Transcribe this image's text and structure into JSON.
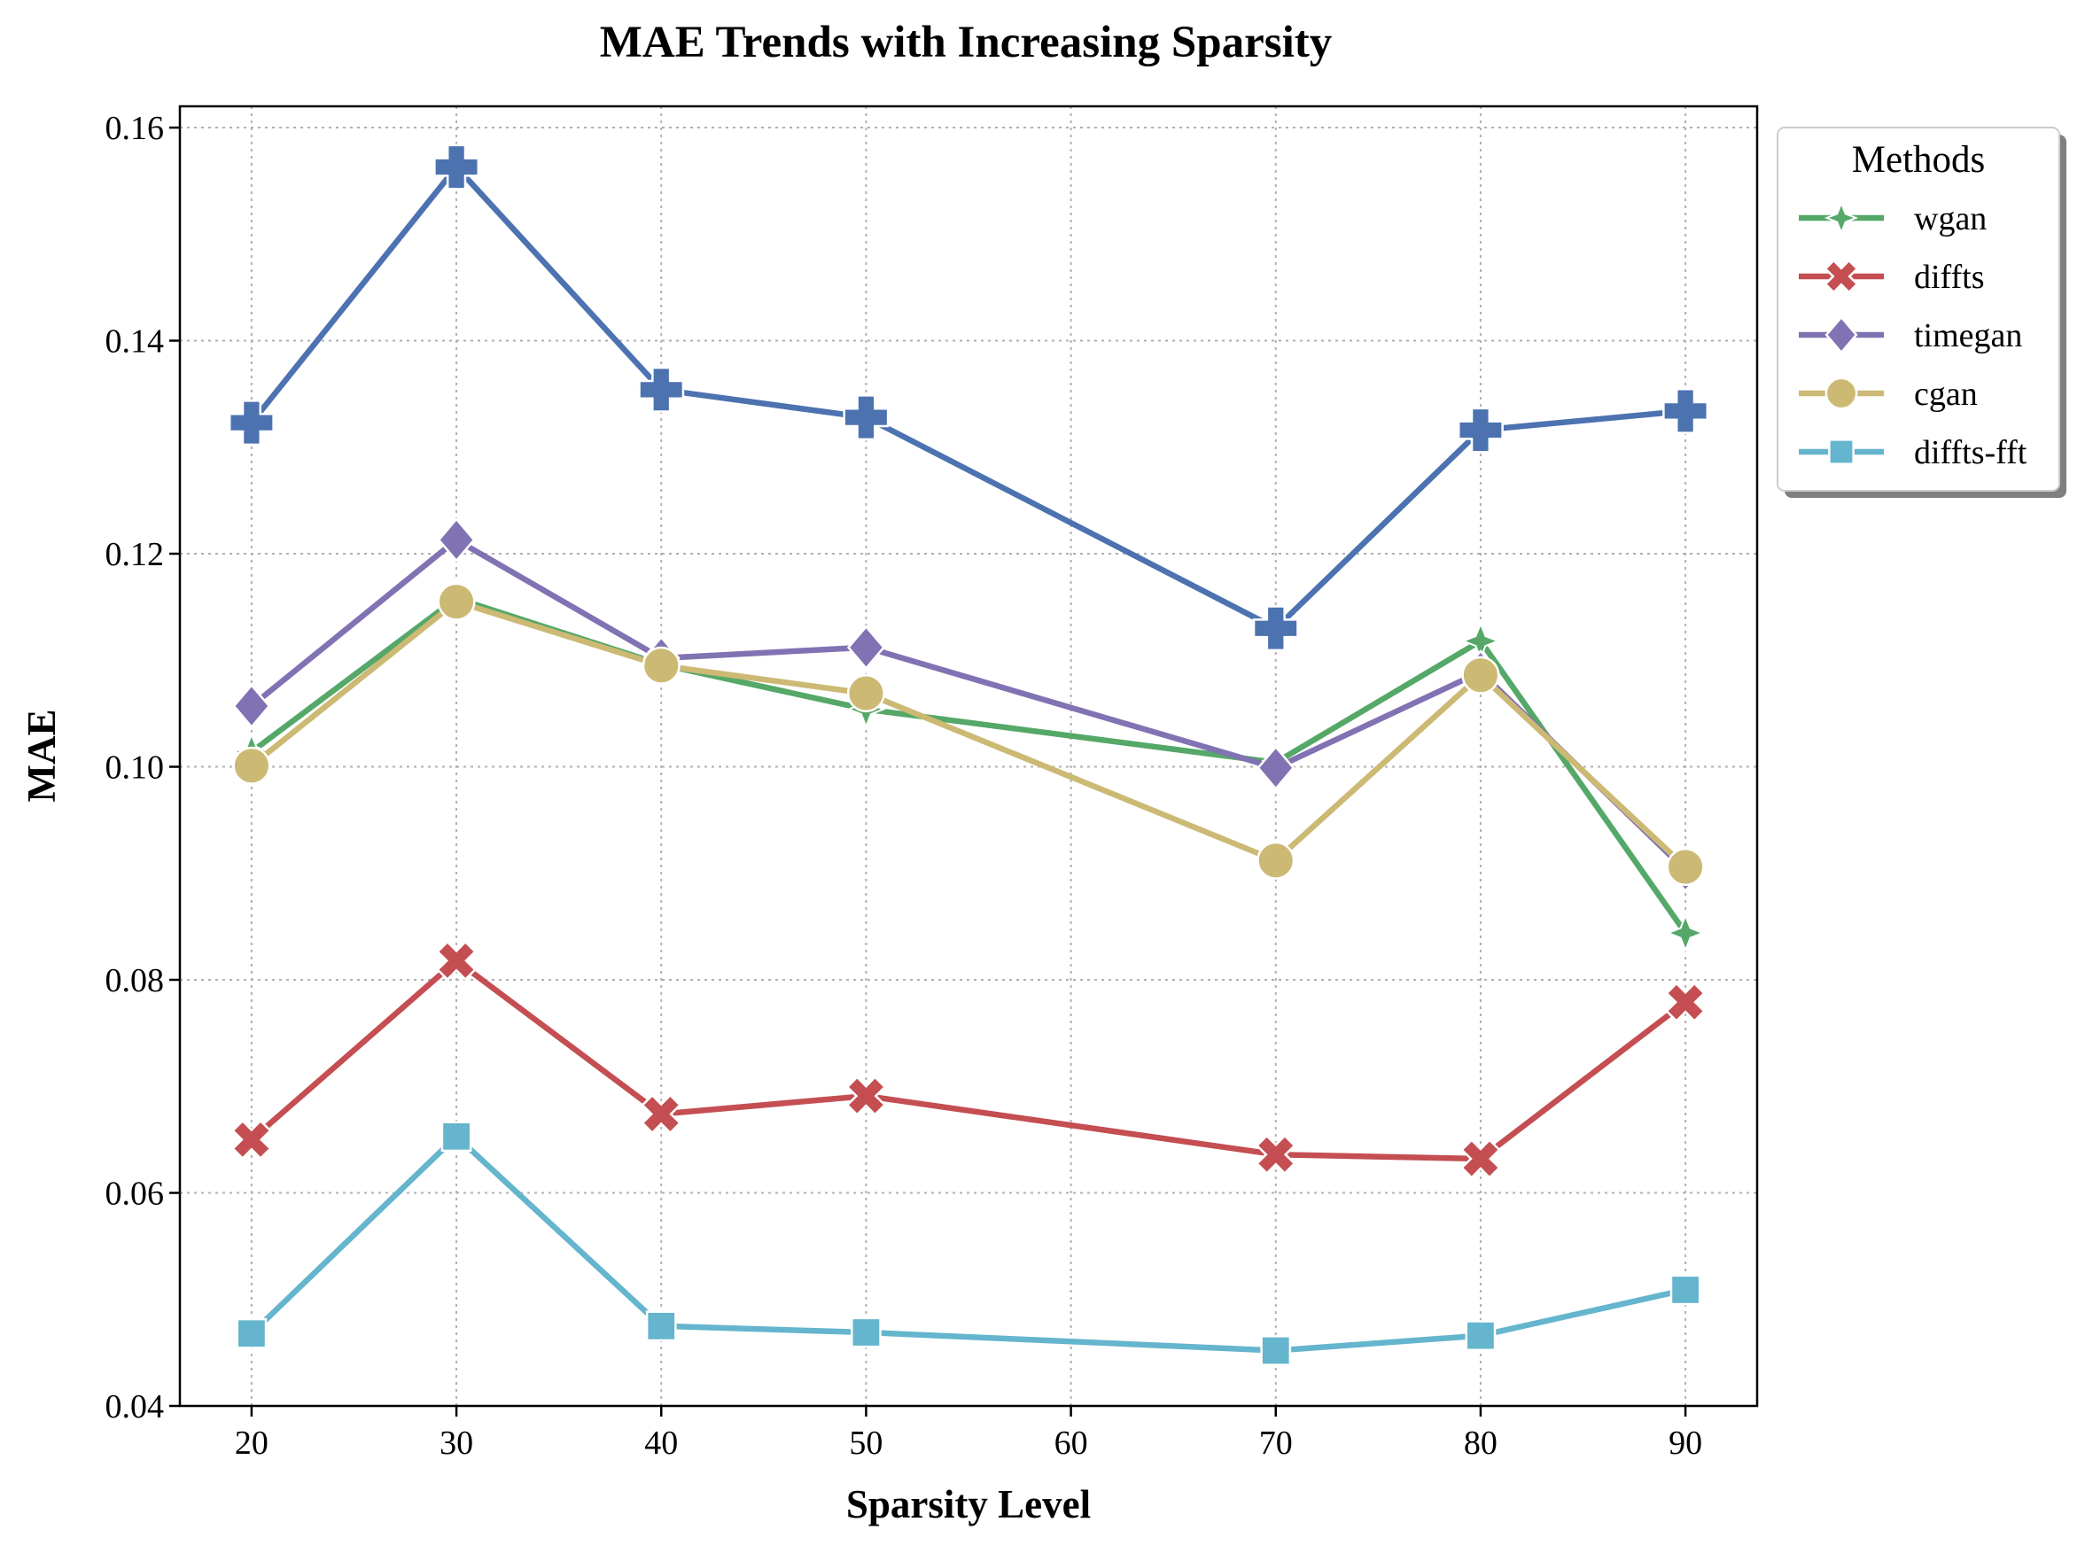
{
  "chart_data": {
    "type": "line",
    "title": "MAE Trends with Increasing Sparsity",
    "xlabel": "Sparsity Level",
    "ylabel": "MAE",
    "xlim": [
      16.5,
      93.5
    ],
    "ylim": [
      0.04,
      0.162
    ],
    "xticks": [
      20,
      30,
      40,
      50,
      60,
      70,
      80,
      90
    ],
    "yticks": [
      0.04,
      0.06,
      0.08,
      0.1,
      0.12,
      0.14,
      0.16
    ],
    "ytick_labels": [
      "0.04",
      "0.06",
      "0.08",
      "0.10",
      "0.12",
      "0.14",
      "0.16"
    ],
    "x": [
      20,
      30,
      40,
      50,
      70,
      80,
      90
    ],
    "grid": true,
    "legend": {
      "title": "Methods",
      "placement": "outside-top-right"
    },
    "series": [
      {
        "name": "",
        "color": "#4c72b0",
        "marker": "plus",
        "in_legend": false,
        "values": [
          0.1323,
          0.1563,
          0.1354,
          0.1328,
          0.113,
          0.1316,
          0.1334
        ]
      },
      {
        "name": "wgan",
        "color": "#55a868",
        "marker": "star",
        "in_legend": true,
        "values": [
          0.1014,
          0.1158,
          0.1096,
          0.1054,
          0.1004,
          0.1118,
          0.0844
        ]
      },
      {
        "name": "diffts",
        "color": "#c44e52",
        "marker": "x",
        "in_legend": true,
        "values": [
          0.065,
          0.0818,
          0.0674,
          0.0691,
          0.0636,
          0.0632,
          0.0779
        ]
      },
      {
        "name": "timegan",
        "color": "#8172b3",
        "marker": "diamond",
        "in_legend": true,
        "values": [
          0.1057,
          0.1213,
          0.1102,
          0.1112,
          0.0999,
          0.1089,
          0.0903
        ]
      },
      {
        "name": "cgan",
        "color": "#ccb974",
        "marker": "circle",
        "in_legend": true,
        "values": [
          0.1001,
          0.1155,
          0.1095,
          0.1069,
          0.0912,
          0.1086,
          0.0906
        ]
      },
      {
        "name": "diffts-fft",
        "color": "#64b5cd",
        "marker": "square",
        "in_legend": true,
        "values": [
          0.0468,
          0.0653,
          0.0475,
          0.0469,
          0.0452,
          0.0466,
          0.0509
        ]
      }
    ]
  }
}
